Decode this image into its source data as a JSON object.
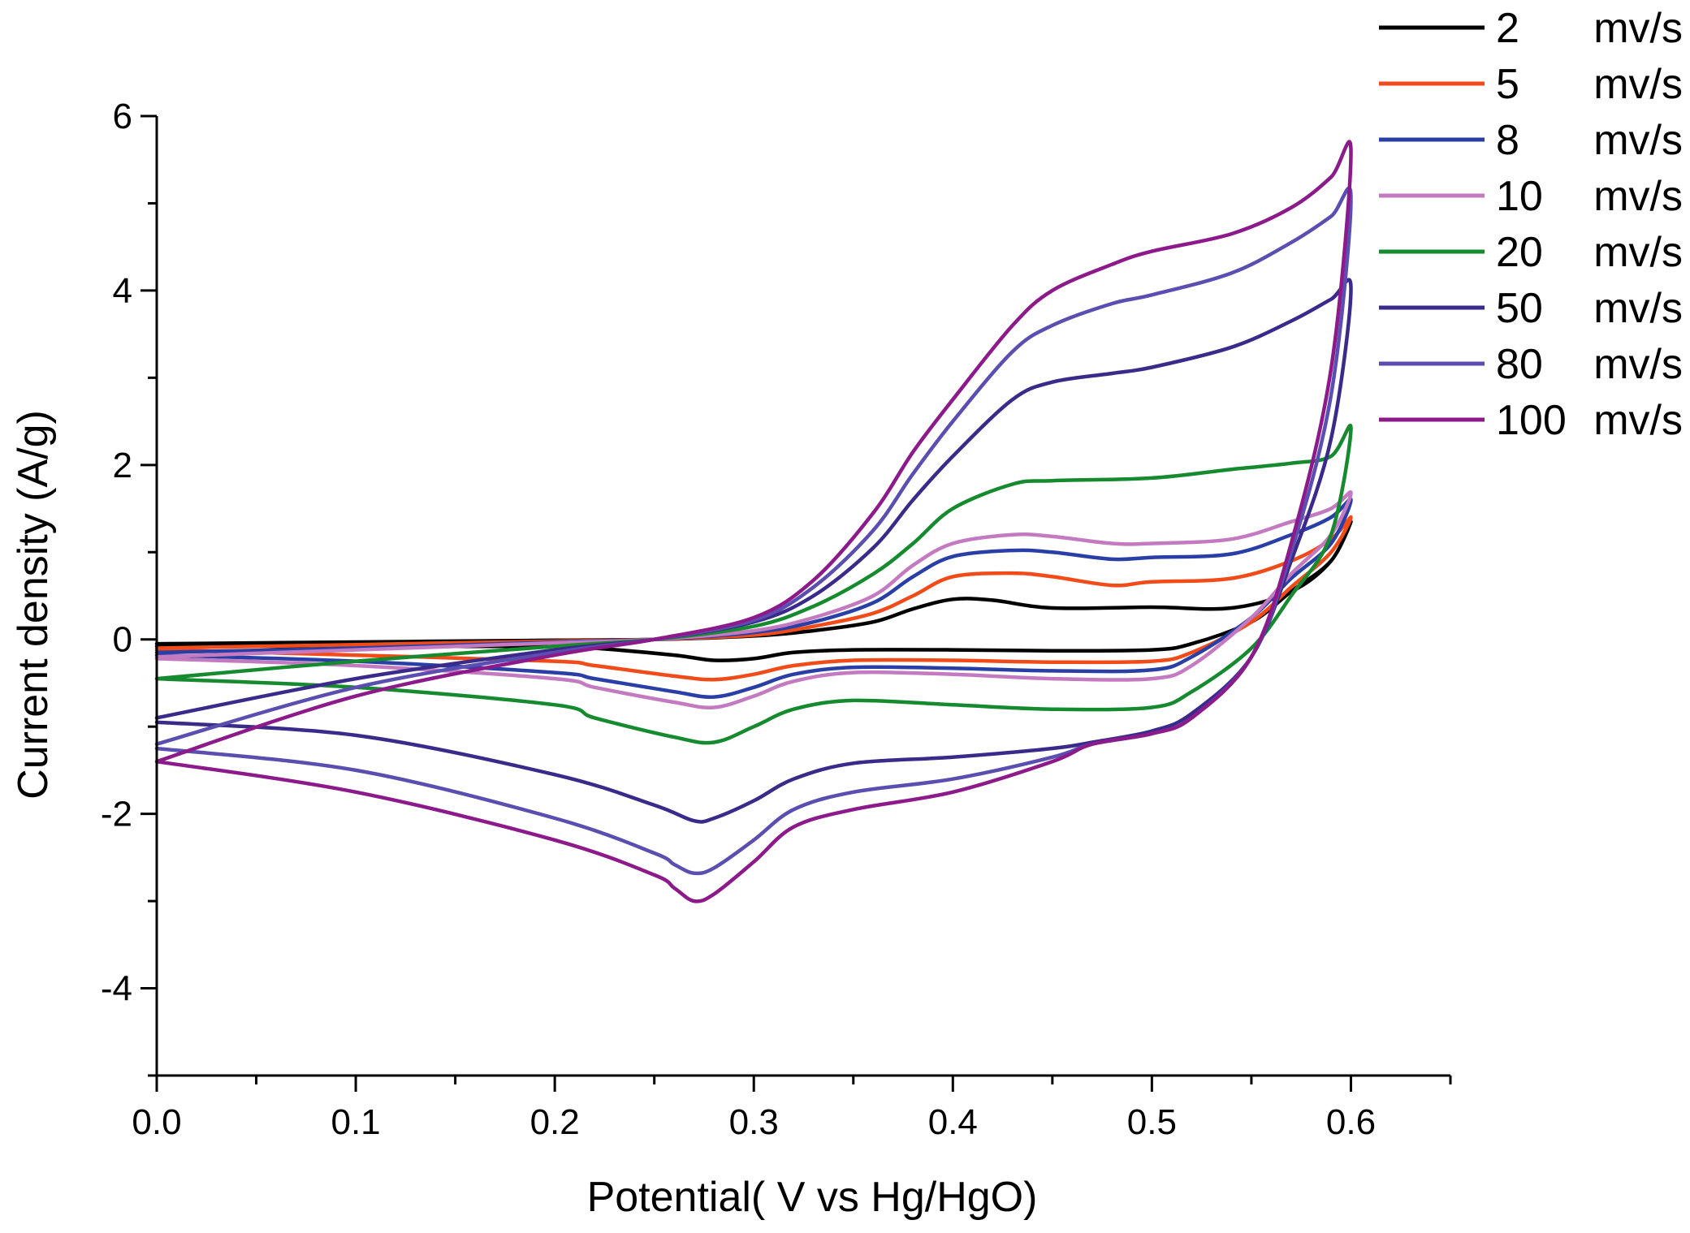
{
  "chart_data": {
    "type": "line",
    "title": "",
    "xlabel": "Potential( V vs Hg/HgO)",
    "ylabel": "Current density (A/g)",
    "xlim": [
      0.0,
      0.65
    ],
    "ylim": [
      -5,
      6
    ],
    "xticks": [
      0.0,
      0.1,
      0.2,
      0.3,
      0.4,
      0.5,
      0.6
    ],
    "xtick_labels": [
      "0.0",
      "0.1",
      "0.2",
      "0.3",
      "0.4",
      "0.5",
      "0.6"
    ],
    "yticks": [
      -4,
      -2,
      0,
      2,
      4,
      6
    ],
    "ytick_labels": [
      "-4",
      "-2",
      "0",
      "2",
      "4",
      "6"
    ],
    "legend_position": "top-right",
    "series": [
      {
        "name": "2",
        "unit": "mv/s",
        "color": "#000000",
        "x": [
          0.0,
          0.1,
          0.2,
          0.25,
          0.3,
          0.33,
          0.36,
          0.38,
          0.4,
          0.42,
          0.45,
          0.5,
          0.54,
          0.57,
          0.59,
          0.6,
          0.59,
          0.57,
          0.55,
          0.52,
          0.5,
          0.45,
          0.4,
          0.35,
          0.32,
          0.3,
          0.28,
          0.26,
          0.22,
          0.2,
          0.1,
          0.0
        ],
        "y": [
          -0.05,
          -0.03,
          -0.01,
          0.0,
          0.04,
          0.1,
          0.2,
          0.35,
          0.46,
          0.45,
          0.36,
          0.37,
          0.36,
          0.55,
          0.9,
          1.35,
          0.9,
          0.55,
          0.2,
          -0.05,
          -0.12,
          -0.13,
          -0.12,
          -0.12,
          -0.15,
          -0.22,
          -0.24,
          -0.18,
          -0.1,
          -0.08,
          -0.08,
          -0.08
        ]
      },
      {
        "name": "5",
        "unit": "mv/s",
        "color": "#f24b1a",
        "x": [
          0.0,
          0.1,
          0.2,
          0.25,
          0.3,
          0.33,
          0.36,
          0.38,
          0.4,
          0.43,
          0.45,
          0.48,
          0.5,
          0.54,
          0.57,
          0.59,
          0.6,
          0.59,
          0.57,
          0.55,
          0.52,
          0.5,
          0.45,
          0.4,
          0.35,
          0.32,
          0.3,
          0.28,
          0.26,
          0.22,
          0.2,
          0.1,
          0.0
        ],
        "y": [
          -0.1,
          -0.06,
          -0.02,
          0.0,
          0.05,
          0.15,
          0.3,
          0.5,
          0.72,
          0.76,
          0.72,
          0.62,
          0.66,
          0.7,
          0.9,
          1.15,
          1.4,
          1.0,
          0.6,
          0.2,
          -0.15,
          -0.25,
          -0.26,
          -0.24,
          -0.24,
          -0.3,
          -0.4,
          -0.46,
          -0.42,
          -0.3,
          -0.25,
          -0.18,
          -0.12
        ]
      },
      {
        "name": "8",
        "unit": "mv/s",
        "color": "#2a3fa6",
        "x": [
          0.0,
          0.1,
          0.2,
          0.25,
          0.3,
          0.33,
          0.36,
          0.38,
          0.4,
          0.43,
          0.45,
          0.48,
          0.5,
          0.54,
          0.57,
          0.59,
          0.6,
          0.59,
          0.57,
          0.55,
          0.52,
          0.5,
          0.45,
          0.4,
          0.35,
          0.32,
          0.3,
          0.28,
          0.26,
          0.22,
          0.2,
          0.1,
          0.0
        ],
        "y": [
          -0.15,
          -0.1,
          -0.03,
          0.0,
          0.08,
          0.2,
          0.42,
          0.72,
          0.95,
          1.02,
          1.0,
          0.92,
          0.94,
          0.98,
          1.2,
          1.4,
          1.6,
          1.1,
          0.7,
          0.25,
          -0.2,
          -0.35,
          -0.36,
          -0.33,
          -0.32,
          -0.4,
          -0.55,
          -0.66,
          -0.6,
          -0.45,
          -0.38,
          -0.25,
          -0.18
        ]
      },
      {
        "name": "10",
        "unit": "mv/s",
        "color": "#c47ac0",
        "x": [
          0.0,
          0.1,
          0.2,
          0.25,
          0.3,
          0.33,
          0.36,
          0.38,
          0.4,
          0.43,
          0.45,
          0.48,
          0.5,
          0.54,
          0.57,
          0.59,
          0.6,
          0.59,
          0.57,
          0.55,
          0.52,
          0.5,
          0.45,
          0.4,
          0.35,
          0.32,
          0.3,
          0.28,
          0.26,
          0.22,
          0.2,
          0.1,
          0.0
        ],
        "y": [
          -0.2,
          -0.12,
          -0.04,
          0.0,
          0.1,
          0.25,
          0.5,
          0.85,
          1.1,
          1.2,
          1.18,
          1.1,
          1.1,
          1.15,
          1.35,
          1.5,
          1.68,
          1.2,
          0.75,
          0.25,
          -0.3,
          -0.45,
          -0.45,
          -0.4,
          -0.38,
          -0.48,
          -0.65,
          -0.78,
          -0.72,
          -0.55,
          -0.45,
          -0.3,
          -0.22
        ]
      },
      {
        "name": "20",
        "unit": "mv/s",
        "color": "#168a2e",
        "x": [
          0.0,
          0.1,
          0.2,
          0.25,
          0.3,
          0.33,
          0.36,
          0.38,
          0.4,
          0.43,
          0.45,
          0.5,
          0.54,
          0.57,
          0.59,
          0.6,
          0.59,
          0.57,
          0.55,
          0.52,
          0.5,
          0.45,
          0.4,
          0.35,
          0.32,
          0.3,
          0.28,
          0.26,
          0.22,
          0.2,
          0.1,
          0.0
        ],
        "y": [
          -0.45,
          -0.25,
          -0.08,
          0.0,
          0.15,
          0.38,
          0.75,
          1.1,
          1.5,
          1.78,
          1.82,
          1.85,
          1.95,
          2.02,
          2.1,
          2.42,
          1.2,
          0.5,
          -0.1,
          -0.6,
          -0.78,
          -0.8,
          -0.75,
          -0.7,
          -0.8,
          -1.0,
          -1.18,
          -1.12,
          -0.9,
          -0.75,
          -0.55,
          -0.45
        ]
      },
      {
        "name": "50",
        "unit": "mv/s",
        "color": "#3a2a8a",
        "x": [
          0.0,
          0.1,
          0.2,
          0.25,
          0.3,
          0.33,
          0.36,
          0.38,
          0.4,
          0.43,
          0.45,
          0.48,
          0.5,
          0.54,
          0.57,
          0.59,
          0.6,
          0.59,
          0.57,
          0.55,
          0.52,
          0.5,
          0.47,
          0.45,
          0.4,
          0.35,
          0.32,
          0.3,
          0.28,
          0.27,
          0.25,
          0.2,
          0.1,
          0.0
        ],
        "y": [
          -0.9,
          -0.45,
          -0.12,
          0.0,
          0.2,
          0.5,
          1.05,
          1.6,
          2.1,
          2.75,
          2.95,
          3.05,
          3.12,
          3.35,
          3.65,
          3.9,
          4.02,
          2.3,
          0.9,
          -0.2,
          -0.85,
          -1.05,
          -1.18,
          -1.25,
          -1.35,
          -1.42,
          -1.6,
          -1.85,
          -2.05,
          -2.08,
          -1.9,
          -1.55,
          -1.1,
          -0.95
        ]
      },
      {
        "name": "80",
        "unit": "mv/s",
        "color": "#5a4fb0",
        "x": [
          0.0,
          0.1,
          0.2,
          0.25,
          0.3,
          0.33,
          0.36,
          0.38,
          0.4,
          0.43,
          0.45,
          0.48,
          0.5,
          0.54,
          0.57,
          0.59,
          0.6,
          0.59,
          0.57,
          0.55,
          0.52,
          0.5,
          0.47,
          0.45,
          0.4,
          0.35,
          0.32,
          0.3,
          0.28,
          0.27,
          0.26,
          0.25,
          0.2,
          0.1,
          0.0
        ],
        "y": [
          -1.2,
          -0.55,
          -0.15,
          0.0,
          0.22,
          0.6,
          1.25,
          1.9,
          2.5,
          3.3,
          3.6,
          3.85,
          3.95,
          4.2,
          4.55,
          4.85,
          5.05,
          2.8,
          1.0,
          -0.2,
          -0.9,
          -1.08,
          -1.2,
          -1.35,
          -1.6,
          -1.75,
          -1.95,
          -2.3,
          -2.62,
          -2.68,
          -2.58,
          -2.45,
          -2.05,
          -1.5,
          -1.25
        ]
      },
      {
        "name": "100",
        "unit": "mv/s",
        "color": "#8c1a8a",
        "x": [
          0.0,
          0.1,
          0.2,
          0.25,
          0.3,
          0.33,
          0.36,
          0.38,
          0.4,
          0.43,
          0.45,
          0.48,
          0.5,
          0.54,
          0.57,
          0.59,
          0.6,
          0.59,
          0.57,
          0.55,
          0.52,
          0.5,
          0.47,
          0.45,
          0.4,
          0.35,
          0.32,
          0.3,
          0.28,
          0.27,
          0.26,
          0.25,
          0.2,
          0.1,
          0.0
        ],
        "y": [
          -1.4,
          -0.65,
          -0.18,
          0.0,
          0.25,
          0.68,
          1.45,
          2.15,
          2.75,
          3.6,
          4.0,
          4.3,
          4.45,
          4.65,
          4.95,
          5.3,
          5.58,
          3.1,
          1.1,
          -0.2,
          -0.9,
          -1.08,
          -1.2,
          -1.4,
          -1.75,
          -1.95,
          -2.15,
          -2.55,
          -2.92,
          -3.0,
          -2.85,
          -2.7,
          -2.3,
          -1.75,
          -1.4
        ]
      }
    ]
  }
}
